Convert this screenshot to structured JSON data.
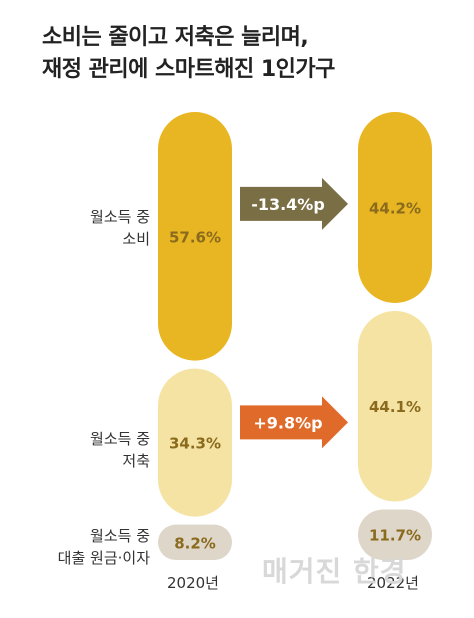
{
  "title_lines": [
    "소비는 줄이고 저축은 늘리며,",
    "재정 관리에 스마트해진 1인가구"
  ],
  "chart_data": {
    "type": "bar",
    "stacked": true,
    "unit": "%",
    "categories": [
      "2020년",
      "2022년"
    ],
    "series": [
      {
        "name": "월소득 중 소비",
        "values": [
          57.6,
          44.2
        ],
        "labels": [
          "57.6%",
          "44.2%"
        ],
        "color": "#E9B623"
      },
      {
        "name": "월소득 중 저축",
        "values": [
          34.3,
          44.1
        ],
        "labels": [
          "34.3%",
          "44.1%"
        ],
        "color": "#F5E3A3"
      },
      {
        "name": "월소득 중 대출 원금·이자",
        "values": [
          8.2,
          11.7
        ],
        "labels": [
          "8.2%",
          "11.7%"
        ],
        "color": "#DDD6C9"
      }
    ],
    "row_labels": [
      [
        "월소득 중",
        "소비"
      ],
      [
        "월소득 중",
        "저축"
      ],
      [
        "월소득 중",
        "대출 원금·이자"
      ]
    ],
    "changes": [
      {
        "label": "-13.4%p",
        "color": "#7A6E45"
      },
      {
        "label": "+9.8%p",
        "color": "#E06A2A"
      }
    ],
    "value_label_color": "#8A6A1C"
  },
  "watermark": "매거진 한경"
}
